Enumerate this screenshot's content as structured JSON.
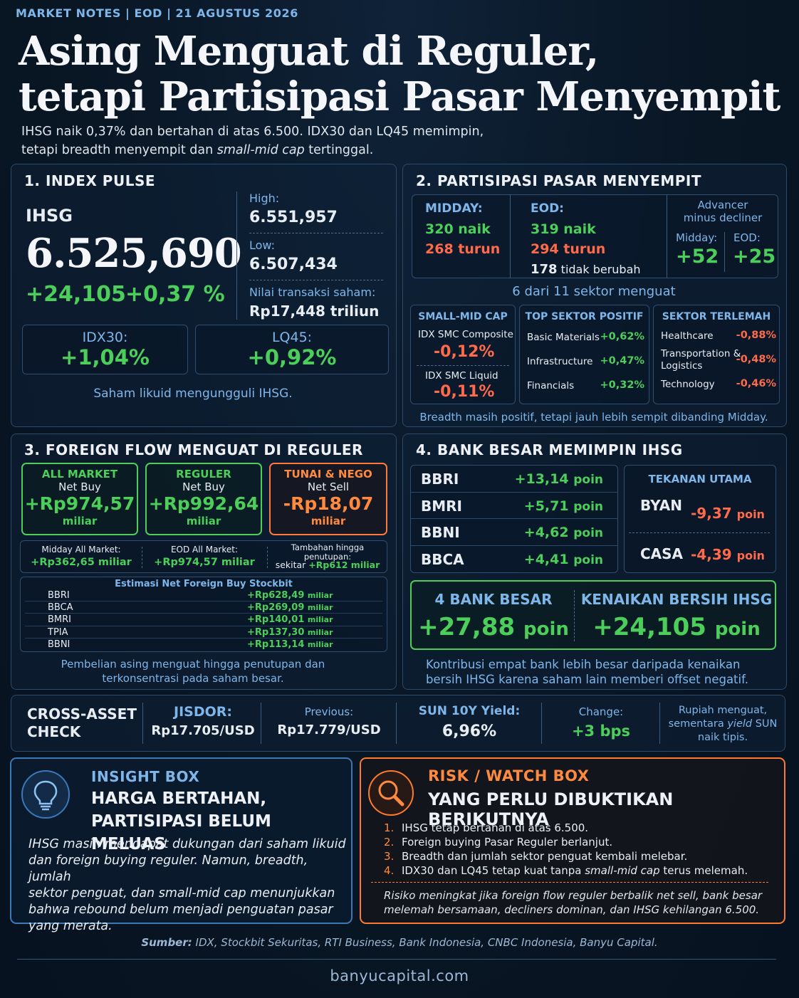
{
  "header": {
    "kicker": [
      "MARKET NOTES",
      "EOD",
      "21 AGUSTUS 2026"
    ],
    "kicker_sep": "|",
    "headline_1": "Asing Menguat di Reguler,",
    "headline_2": "tetapi Partisipasi Pasar Menyempit",
    "lede_1": "IHSG naik 0,37% dan bertahan di atas 6.500. IDX30 dan LQ45 memimpin,",
    "lede_2a": "tetapi breadth menyempit dan ",
    "lede_2b": "small-mid cap",
    "lede_2c": " tertinggal."
  },
  "index_pulse": {
    "title": "1. INDEX PULSE",
    "name": "IHSG",
    "value": "6.525,690",
    "change_pts": "+24,105",
    "change_pct": "+0,37 %",
    "high_label": "High:",
    "high": "6.551,957",
    "low_label": "Low:",
    "low": "6.507,434",
    "turnover_label": "Nilai transaksi saham:",
    "turnover": "Rp17,448 triliun",
    "idx30_label": "IDX30:",
    "idx30": "+1,04%",
    "lq45_label": "LQ45:",
    "lq45": "+0,92%",
    "note": "Saham likuid mengungguli IHSG."
  },
  "participation": {
    "title": "2. PARTISIPASI PASAR MENYEMPIT",
    "midday_label": "MIDDAY:",
    "midday_up": "320 naik",
    "midday_down": "268 turun",
    "eod_label": "EOD:",
    "eod_up": "319 naik",
    "eod_down": "294 turun",
    "eod_flat_num": "178",
    "eod_flat_text": " tidak berubah",
    "adv_label_1": "Advancer",
    "adv_label_2": "minus decliner",
    "adv_midday_label": "Midday:",
    "adv_eod_label": "EOD:",
    "adv_midday": "+52",
    "adv_eod": "+25",
    "sector_count": "6 dari 11 sektor menguat",
    "smc_title": "SMALL-MID CAP",
    "smc_composite_label": "IDX SMC Composite",
    "smc_composite": "-0,12%",
    "smc_liquid_label": "IDX SMC Liquid",
    "smc_liquid": "-0,11%",
    "top_title": "TOP SEKTOR POSITIF",
    "top": [
      {
        "name": "Basic Materials",
        "value": "+0,62%"
      },
      {
        "name": "Infrastructure",
        "value": "+0,47%"
      },
      {
        "name": "Financials",
        "value": "+0,32%"
      }
    ],
    "weak_title": "SEKTOR TERLEMAH",
    "weak": [
      {
        "name": "Healthcare",
        "value": "-0,88%"
      },
      {
        "name": "Transportation &",
        "name2": "Logistics",
        "value": "-0,48%"
      },
      {
        "name": "Technology",
        "value": "-0,46%"
      }
    ],
    "note": "Breadth masih positif, tetapi jauh lebih sempit dibanding Midday."
  },
  "foreign": {
    "title": "3. FOREIGN FLOW MENGUAT DI REGULER",
    "all": {
      "label": "ALL MARKET",
      "sub": "Net Buy",
      "value": "+Rp974,57",
      "unit": "miliar"
    },
    "reg": {
      "label": "REGULER",
      "sub": "Net Buy",
      "value": "+Rp992,64",
      "unit": "miliar"
    },
    "nego": {
      "label": "TUNAI & NEGO",
      "sub": "Net Sell",
      "value": "-Rp18,07",
      "unit": "miliar"
    },
    "midday_label": "Midday All Market:",
    "midday_value": "+Rp362,65 miliar",
    "eod_label": "EOD All Market:",
    "eod_value": "+Rp974,57 miliar",
    "extra_label_1": "Tambahan hingga",
    "extra_label_2": "penutupan:",
    "extra_prefix": "sekitar ",
    "extra_value": "+Rp612 miliar",
    "est_title": "Estimasi Net Foreign Buy Stockbit",
    "est": [
      {
        "ticker": "BBRI",
        "value": "+Rp628,49",
        "unit": "miliar"
      },
      {
        "ticker": "BBCA",
        "value": "+Rp269,09",
        "unit": "miliar"
      },
      {
        "ticker": "BMRI",
        "value": "+Rp140,01",
        "unit": "miliar"
      },
      {
        "ticker": "TPIA",
        "value": "+Rp137,30",
        "unit": "miliar"
      },
      {
        "ticker": "BBNI",
        "value": "+Rp113,14",
        "unit": "miliar"
      }
    ],
    "note_1": "Pembelian asing menguat hingga penutupan dan",
    "note_2": "terkonsentrasi pada saham besar."
  },
  "banks": {
    "title": "4. BANK BESAR MEMIMPIN IHSG",
    "rows": [
      {
        "ticker": "BBRI",
        "value": "+13,14",
        "unit": "poin"
      },
      {
        "ticker": "BMRI",
        "value": "+5,71",
        "unit": "poin"
      },
      {
        "ticker": "BBNI",
        "value": "+4,62",
        "unit": "poin"
      },
      {
        "ticker": "BBCA",
        "value": "+4,41",
        "unit": "poin"
      }
    ],
    "pressure_title": "TEKANAN UTAMA",
    "pressure": [
      {
        "ticker": "BYAN",
        "value": "-9,37",
        "unit": "poin"
      },
      {
        "ticker": "CASA",
        "value": "-4,39",
        "unit": "poin"
      }
    ],
    "big4_label": "4 BANK BESAR",
    "big4_value": "+27,88",
    "big4_unit": "poin",
    "net_label": "KENAIKAN BERSIH IHSG",
    "net_value": "+24,105",
    "net_unit": "poin",
    "note_1": "Kontribusi empat bank lebih besar daripada kenaikan",
    "note_2": "bersih IHSG karena saham lain memberi offset negatif."
  },
  "cross": {
    "title_1": "CROSS-ASSET",
    "title_2": "CHECK",
    "jisdor_label": "JISDOR:",
    "jisdor": "Rp17.705/USD",
    "prev_label": "Previous:",
    "prev": "Rp17.779/USD",
    "sun_label": "SUN 10Y Yield:",
    "sun": "6,96%",
    "change_label": "Change:",
    "change": "+3 bps",
    "note_1": "Rupiah menguat,",
    "note_2a": "sementara ",
    "note_2b": "yield",
    "note_2c": " SUN",
    "note_3": "naik tipis."
  },
  "insight": {
    "label": "INSIGHT BOX",
    "title_1": "HARGA BERTAHAN,",
    "title_2": "PARTISIPASI BELUM MELUAS",
    "body_1": "IHSG masih mendapat dukungan dari saham likuid",
    "body_2": "dan foreign buying reguler. Namun, breadth, jumlah",
    "body_3": "sektor penguat, dan small-mid cap menunjukkan",
    "body_4": "bahwa rebound belum menjadi penguatan pasar",
    "body_5": "yang merata."
  },
  "risk": {
    "label": "RISK / WATCH BOX",
    "title": "YANG PERLU DIBUKTIKAN BERIKUTNYA",
    "items": [
      {
        "num": "1.",
        "text": "IHSG tetap bertahan di atas 6.500."
      },
      {
        "num": "2.",
        "text": "Foreign buying Pasar Reguler berlanjut."
      },
      {
        "num": "3.",
        "text": "Breadth dan jumlah sektor penguat kembali melebar."
      },
      {
        "num": "4.",
        "text": "IDX30 dan LQ45 tetap kuat tanpa ",
        "em": "small-mid cap",
        "tail": " terus melemah."
      }
    ],
    "warn_1": "Risiko meningkat jika foreign flow reguler berbalik net sell, bank besar",
    "warn_2": "melemah bersamaan, decliners dominan, dan IHSG kehilangan 6.500."
  },
  "footer": {
    "source_label": "Sumber:",
    "source": " IDX, Stockbit Sekuritas, RTI Business, Bank Indonesia, CNBC Indonesia, Banyu Capital.",
    "site": "banyucapital.com"
  },
  "colors": {
    "positive": "#4ccf5a",
    "negative": "#ff6b4a",
    "accent": "#7fb6ea",
    "risk": "#ff7a2c"
  }
}
